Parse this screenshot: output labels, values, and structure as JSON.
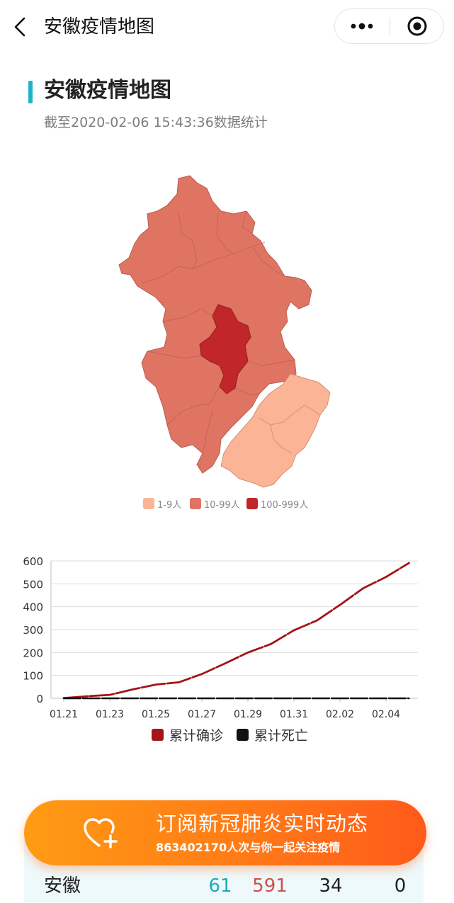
{
  "nav": {
    "title": "安徽疫情地图",
    "back_icon": "chevron-left-icon",
    "more_icon": "more-dots-icon",
    "close_icon": "target-circle-icon"
  },
  "header": {
    "title": "安徽疫情地图",
    "subtitle": "截至2020-02-06 15:43:36数据统计",
    "accent_color": "#1fb2c7"
  },
  "map": {
    "legend": [
      {
        "label": "1-9人",
        "color": "#fbb596"
      },
      {
        "label": "10-99人",
        "color": "#e07462"
      },
      {
        "label": "100-999人",
        "color": "#c0262a"
      }
    ]
  },
  "chart_data": {
    "type": "line",
    "x": [
      "01.21",
      "01.22",
      "01.23",
      "01.24",
      "01.25",
      "01.26",
      "01.27",
      "01.28",
      "01.29",
      "01.30",
      "01.31",
      "02.01",
      "02.02",
      "02.03",
      "02.04",
      "02.05"
    ],
    "x_tick_labels": [
      "01.21",
      "01.23",
      "01.25",
      "01.27",
      "01.29",
      "01.31",
      "02.02",
      "02.04"
    ],
    "series": [
      {
        "name": "累计确诊",
        "color": "#a31517",
        "values": [
          1,
          9,
          15,
          39,
          60,
          70,
          106,
          152,
          200,
          237,
          297,
          340,
          408,
          480,
          530,
          591
        ]
      },
      {
        "name": "累计死亡",
        "color": "#111111",
        "values": [
          0,
          0,
          0,
          0,
          0,
          0,
          0,
          0,
          0,
          0,
          0,
          0,
          0,
          0,
          0,
          0
        ]
      }
    ],
    "y_ticks": [
      "0",
      "100",
      "200",
      "300",
      "400",
      "500",
      "600"
    ],
    "ylim": [
      0,
      600
    ],
    "grid": true,
    "legend_position": "bottom"
  },
  "banner": {
    "title": "订阅新冠肺炎实时动态",
    "subtitle": "863402170人次与你一起关注疫情",
    "icon": "heart-plus-icon"
  },
  "table": {
    "region": "安徽",
    "suspected": "61",
    "confirmed": "591",
    "cured": "34",
    "dead": "0",
    "colors": {
      "suspected": "#1fa9b8",
      "confirmed": "#d0504a",
      "cured": "#222222",
      "dead": "#222222"
    }
  }
}
